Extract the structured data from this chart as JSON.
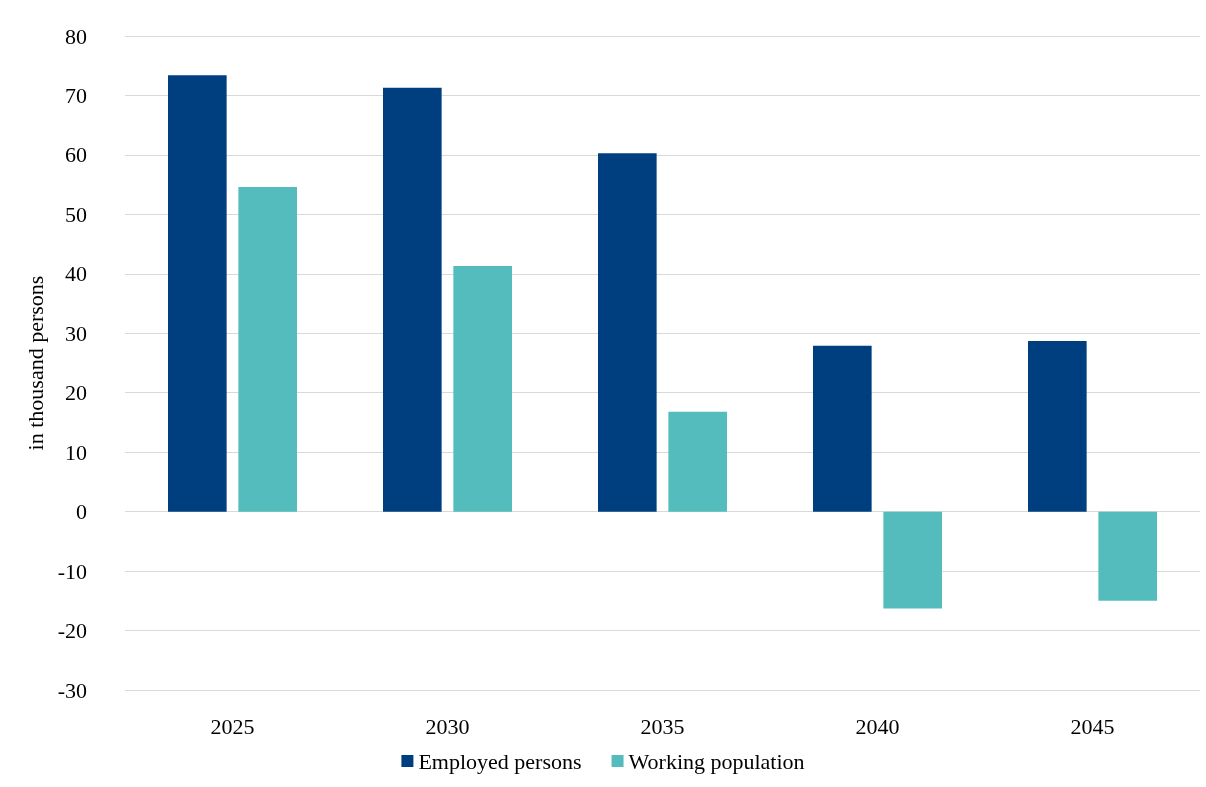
{
  "chart_data": {
    "type": "bar",
    "ylabel": "in thousand persons",
    "categories": [
      "2025",
      "2030",
      "2035",
      "2040",
      "2045"
    ],
    "series": [
      {
        "name": "Employed persons",
        "color": "#003f7f",
        "values": [
          73.4,
          71.3,
          60.3,
          27.9,
          28.7
        ]
      },
      {
        "name": "Working population",
        "color": "#55bcbd",
        "values": [
          54.6,
          41.3,
          16.8,
          -16.3,
          -15.0
        ]
      }
    ],
    "ylim": [
      -30,
      80
    ],
    "yticks": [
      -30,
      -20,
      -10,
      0,
      10,
      20,
      30,
      40,
      50,
      60,
      70,
      80
    ],
    "grid": "y",
    "legend": "bottom"
  }
}
